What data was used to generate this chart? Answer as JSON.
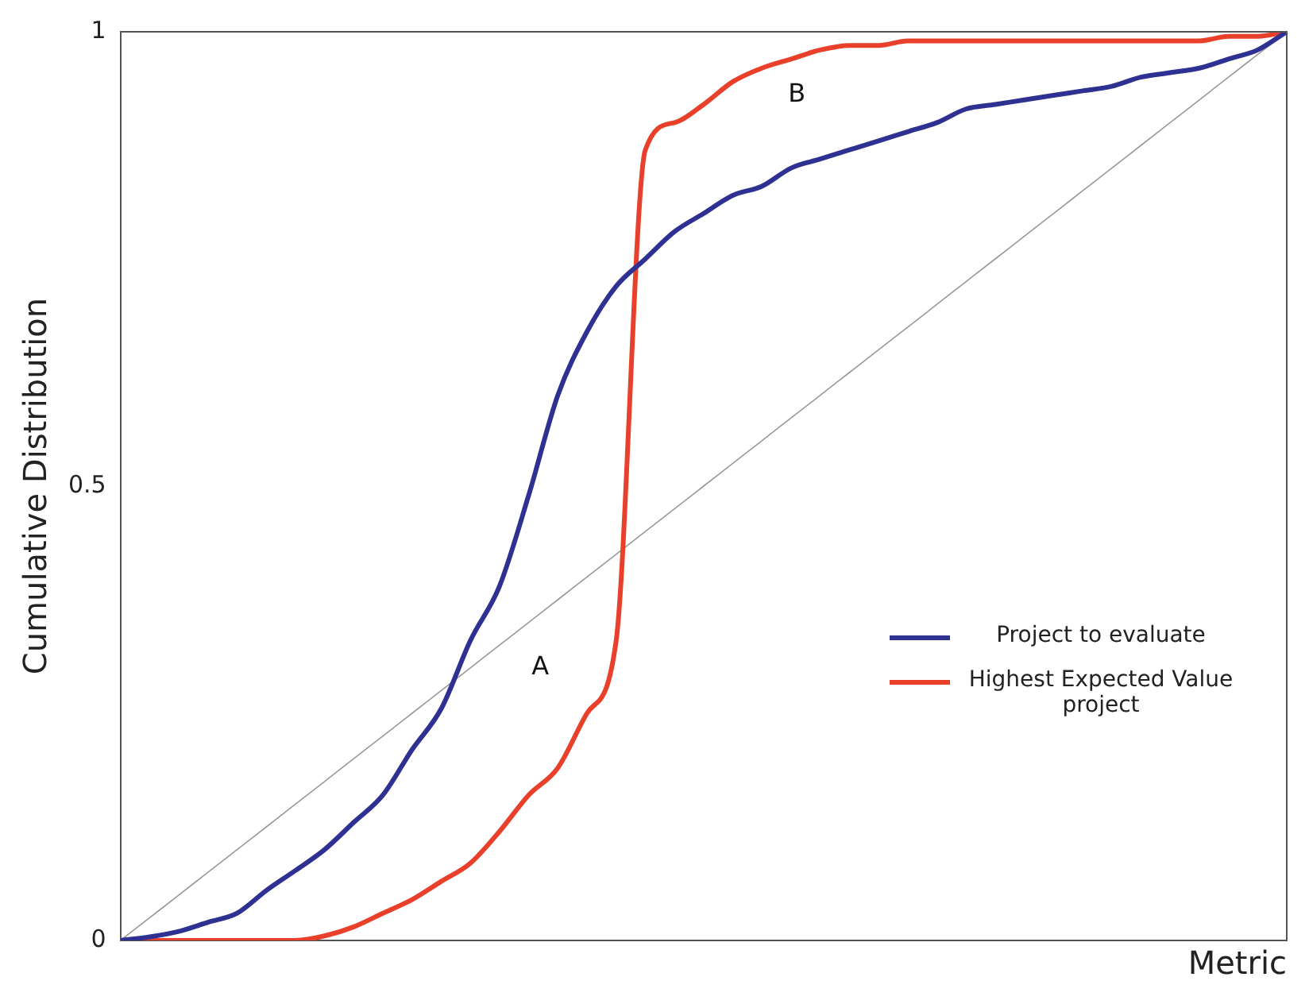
{
  "chart_data": {
    "type": "line",
    "xlabel": "Metric",
    "ylabel": "Cumulative Distribution",
    "categories": [
      null,
      null,
      null,
      null,
      null,
      null,
      null,
      null,
      null,
      null,
      null,
      null,
      null,
      null,
      null,
      null,
      null,
      null,
      null,
      null,
      null,
      null,
      null,
      null,
      null,
      null,
      null,
      null,
      null,
      null,
      null,
      null,
      null,
      null,
      null,
      null,
      null,
      null,
      null,
      null,
      null
    ],
    "series": [
      {
        "name": "Project to evaluate",
        "color": "#2e3192",
        "values": [
          0,
          0.004,
          0.01,
          0.02,
          0.03,
          0.055,
          0.077,
          0.1,
          0.13,
          0.16,
          0.21,
          0.255,
          0.33,
          0.39,
          0.49,
          0.6,
          0.67,
          0.72,
          0.75,
          0.78,
          0.8,
          0.82,
          0.83,
          0.85,
          0.86,
          0.87,
          0.88,
          0.89,
          0.9,
          0.915,
          0.92,
          0.925,
          0.93,
          0.935,
          0.94,
          0.95,
          0.955,
          0.96,
          0.97,
          0.98,
          1
        ]
      },
      {
        "name": "Highest Expected Value project",
        "color": "#e8402a",
        "values": [
          0,
          0,
          0,
          0,
          0,
          0,
          0,
          0.005,
          0.015,
          0.03,
          0.045,
          0.065,
          0.085,
          0.12,
          0.16,
          0.19,
          0.25,
          0.33,
          0.87,
          0.9,
          0.92,
          0.945,
          0.96,
          0.97,
          0.98,
          0.985,
          0.985,
          0.99,
          0.99,
          0.99,
          0.99,
          0.99,
          0.99,
          0.99,
          0.99,
          0.99,
          0.99,
          0.99,
          0.995,
          0.995,
          1
        ]
      },
      {
        "color": "#999999",
        "values": [
          0,
          0.025,
          0.05,
          0.075,
          0.1,
          0.125,
          0.15,
          0.175,
          0.2,
          0.225,
          0.25,
          0.275,
          0.3,
          0.325,
          0.35,
          0.375,
          0.4,
          0.425,
          0.45,
          0.475,
          0.5,
          0.525,
          0.55,
          0.575,
          0.6,
          0.625,
          0.65,
          0.675,
          0.7,
          0.725,
          0.75,
          0.775,
          0.8,
          0.825,
          0.85,
          0.875,
          0.9,
          0.925,
          0.95,
          0.975,
          1
        ]
      }
    ],
    "ylim": [
      0,
      1
    ],
    "yticks": [
      0,
      0.5,
      1
    ],
    "grid": false,
    "legend": "bottom right",
    "tick_labels": "y",
    "marker": "none",
    "line_style": "solid",
    "annotations": [
      "A",
      "B"
    ]
  }
}
